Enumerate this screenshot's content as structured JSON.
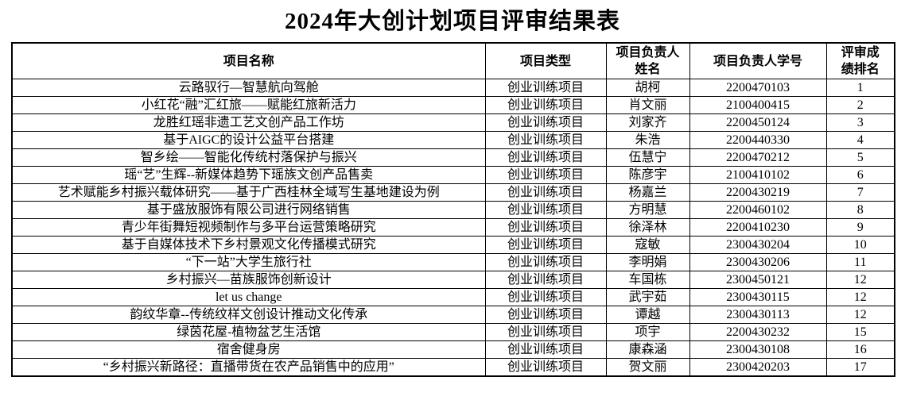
{
  "title": "2024年大创计划项目评审结果表",
  "table": {
    "columns": [
      {
        "label": "项目名称"
      },
      {
        "label": "项目类型"
      },
      {
        "label": "项目负责人\n姓名"
      },
      {
        "label": "项目负责人学号"
      },
      {
        "label": "评审成\n绩排名"
      }
    ],
    "rows": [
      {
        "name": "云路驭行—智慧航向驾舱",
        "type": "创业训练项目",
        "leader": "胡柯",
        "student_id": "2200470103",
        "rank": "1"
      },
      {
        "name": "小红花“融”汇红旅——赋能红旅新活力",
        "type": "创业训练项目",
        "leader": "肖文丽",
        "student_id": "2100400415",
        "rank": "2"
      },
      {
        "name": "龙胜红瑶非遗工艺文创产品工作坊",
        "type": "创业训练项目",
        "leader": "刘家齐",
        "student_id": "2200450124",
        "rank": "3"
      },
      {
        "name": "基于AIGC的设计公益平台搭建",
        "type": "创业训练项目",
        "leader": "朱浩",
        "student_id": "2200440330",
        "rank": "4"
      },
      {
        "name": "智乡绘——智能化传统村落保护与振兴",
        "type": "创业训练项目",
        "leader": "伍慧宁",
        "student_id": "2200470212",
        "rank": "5"
      },
      {
        "name": "瑶“艺”生辉--新媒体趋势下瑶族文创产品售卖",
        "type": "创业训练项目",
        "leader": "陈彦宇",
        "student_id": "2100410102",
        "rank": "6"
      },
      {
        "name": "艺术赋能乡村振兴载体研究——基于广西桂林全域写生基地建设为例",
        "type": "创业训练项目",
        "leader": "杨嘉兰",
        "student_id": "2200430219",
        "rank": "7"
      },
      {
        "name": "基于盛放服饰有限公司进行网络销售",
        "type": "创业训练项目",
        "leader": "方明慧",
        "student_id": "2200460102",
        "rank": "8"
      },
      {
        "name": "青少年街舞短视频制作与多平台运营策略研究",
        "type": "创业训练项目",
        "leader": "徐泽林",
        "student_id": "2200410230",
        "rank": "9"
      },
      {
        "name": "基于自媒体技术下乡村景观文化传播模式研究",
        "type": "创业训练项目",
        "leader": "寇敏",
        "student_id": "2300430204",
        "rank": "10"
      },
      {
        "name": "“下一站”大学生旅行社",
        "type": "创业训练项目",
        "leader": "李明娟",
        "student_id": "2300430206",
        "rank": "11"
      },
      {
        "name": "乡村振兴—苗族服饰创新设计",
        "type": "创业训练项目",
        "leader": "车国栋",
        "student_id": "2300450121",
        "rank": "12"
      },
      {
        "name": "let us change",
        "type": "创业训练项目",
        "leader": "武宇茹",
        "student_id": "2300430115",
        "rank": "12"
      },
      {
        "name": "韵纹华章--传统纹样文创设计推动文化传承",
        "type": "创业训练项目",
        "leader": "谭越",
        "student_id": "2300430113",
        "rank": "12"
      },
      {
        "name": "绿茵花屋-植物盆艺生活馆",
        "type": "创业训练项目",
        "leader": "项宇",
        "student_id": "2200430232",
        "rank": "15"
      },
      {
        "name": "宿舍健身房",
        "type": "创业训练项目",
        "leader": "康森涵",
        "student_id": "2300430108",
        "rank": "16"
      },
      {
        "name": "“乡村振兴新路径：直播带货在农产品销售中的应用”",
        "type": "创业训练项目",
        "leader": "贺文丽",
        "student_id": "2300420203",
        "rank": "17"
      }
    ]
  }
}
